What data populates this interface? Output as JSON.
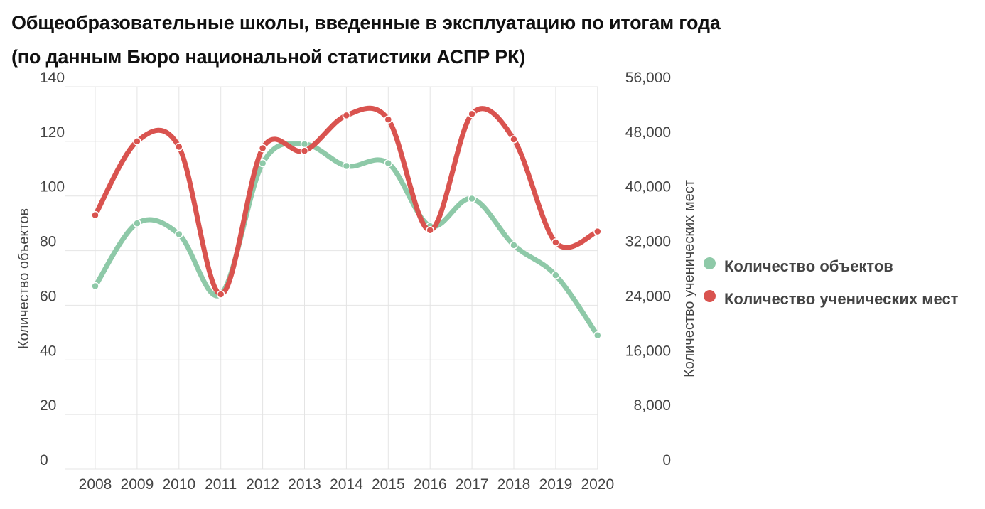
{
  "title": {
    "line1": "Общеобразовательные школы, введенные в эксплуатацию по итогам года",
    "line2": "(по данным Бюро национальной статистики АСПР РК)"
  },
  "chart_data": {
    "type": "line",
    "categories": [
      "2008",
      "2009",
      "2010",
      "2011",
      "2012",
      "2013",
      "2014",
      "2015",
      "2016",
      "2017",
      "2018",
      "2019",
      "2020"
    ],
    "y_left": {
      "label": "Количество объектов",
      "ylim": [
        0,
        140
      ],
      "ticks": [
        "0",
        "20",
        "40",
        "60",
        "80",
        "100",
        "120",
        "140"
      ]
    },
    "y_right": {
      "label": "Количество ученических мест",
      "ylim": [
        0,
        56000
      ],
      "ticks": [
        "0",
        "8,000",
        "16,000",
        "24,000",
        "32,000",
        "40,000",
        "48,000",
        "56,000"
      ]
    },
    "series": [
      {
        "name": "Количество объектов",
        "axis": "left",
        "color": "#8ec9a8",
        "values": [
          67,
          90,
          86,
          64,
          112,
          119,
          111,
          112,
          89,
          99,
          82,
          71,
          49
        ]
      },
      {
        "name": "Количество ученических мест",
        "axis": "right",
        "color": "#d9534f",
        "values": [
          37200,
          48000,
          47200,
          25600,
          47000,
          46600,
          51800,
          51200,
          35000,
          52000,
          48300,
          33200,
          34800
        ]
      }
    ],
    "grid": true,
    "legend_position": "right"
  }
}
